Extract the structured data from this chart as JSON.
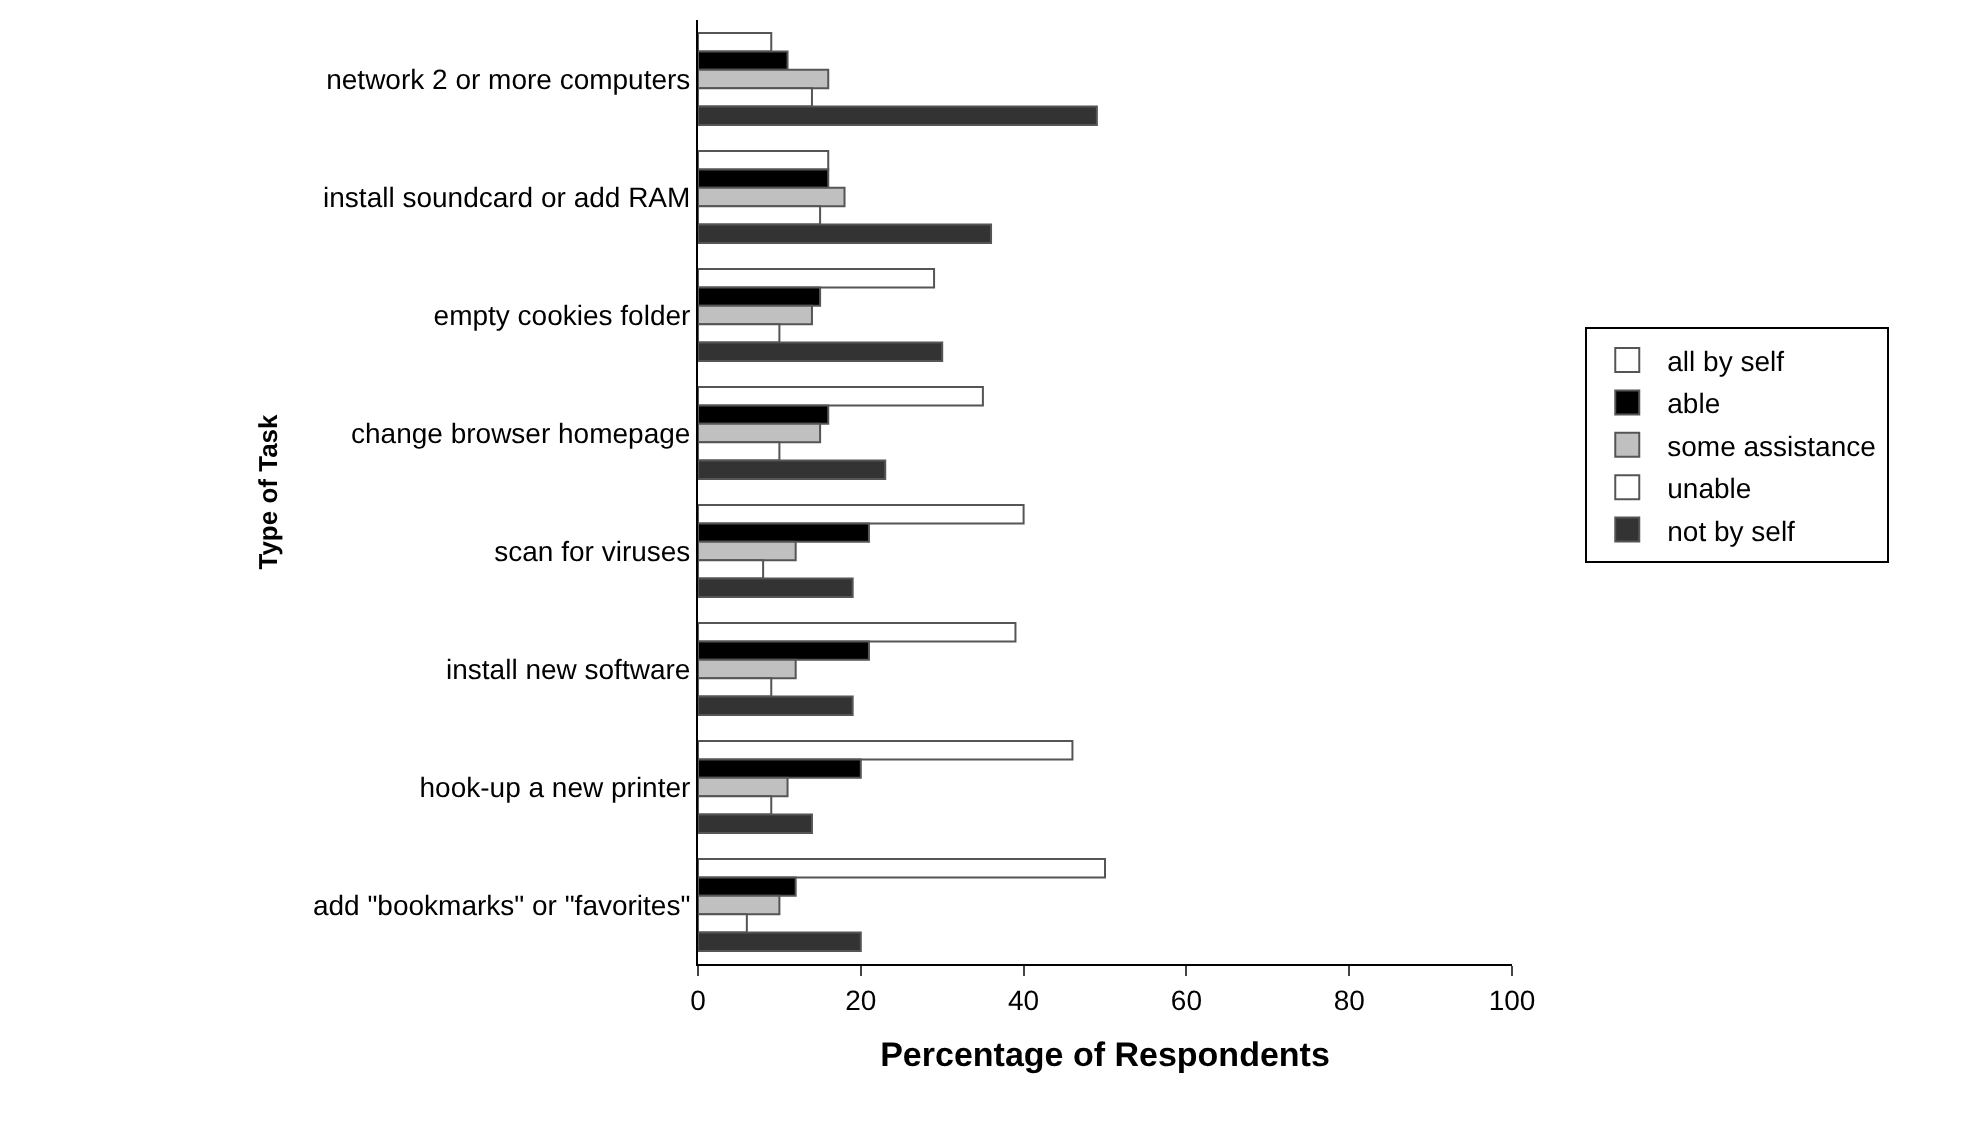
{
  "chart_data": {
    "type": "bar",
    "orientation": "horizontal",
    "xlabel": "Percentage of Respondents",
    "ylabel": "Type of Task",
    "categories": [
      "network 2 or more computers",
      "install soundcard or add RAM",
      "empty cookies folder",
      "change browser homepage",
      "scan for viruses",
      "install new software",
      "hook-up a new printer",
      "add \"bookmarks\" or \"favorites\""
    ],
    "series": [
      {
        "name": "all by self",
        "color": "#ffffff",
        "values": [
          9,
          16,
          29,
          35,
          40,
          39,
          46,
          50
        ]
      },
      {
        "name": "able",
        "color": "#000000",
        "values": [
          11,
          16,
          15,
          16,
          21,
          21,
          20,
          12
        ]
      },
      {
        "name": "some assistance",
        "color": "#c0c0c0",
        "values": [
          16,
          18,
          14,
          15,
          12,
          12,
          11,
          10
        ]
      },
      {
        "name": "unable",
        "color": "#ffffff",
        "values": [
          14,
          15,
          10,
          10,
          8,
          9,
          9,
          6
        ]
      },
      {
        "name": "not by self",
        "color": "#333333",
        "values": [
          49,
          36,
          30,
          23,
          19,
          19,
          14,
          20
        ]
      }
    ],
    "xlim": [
      0,
      100
    ],
    "xticks": [
      0,
      20,
      40,
      60,
      80,
      100
    ],
    "grid": false,
    "legend": "right"
  }
}
